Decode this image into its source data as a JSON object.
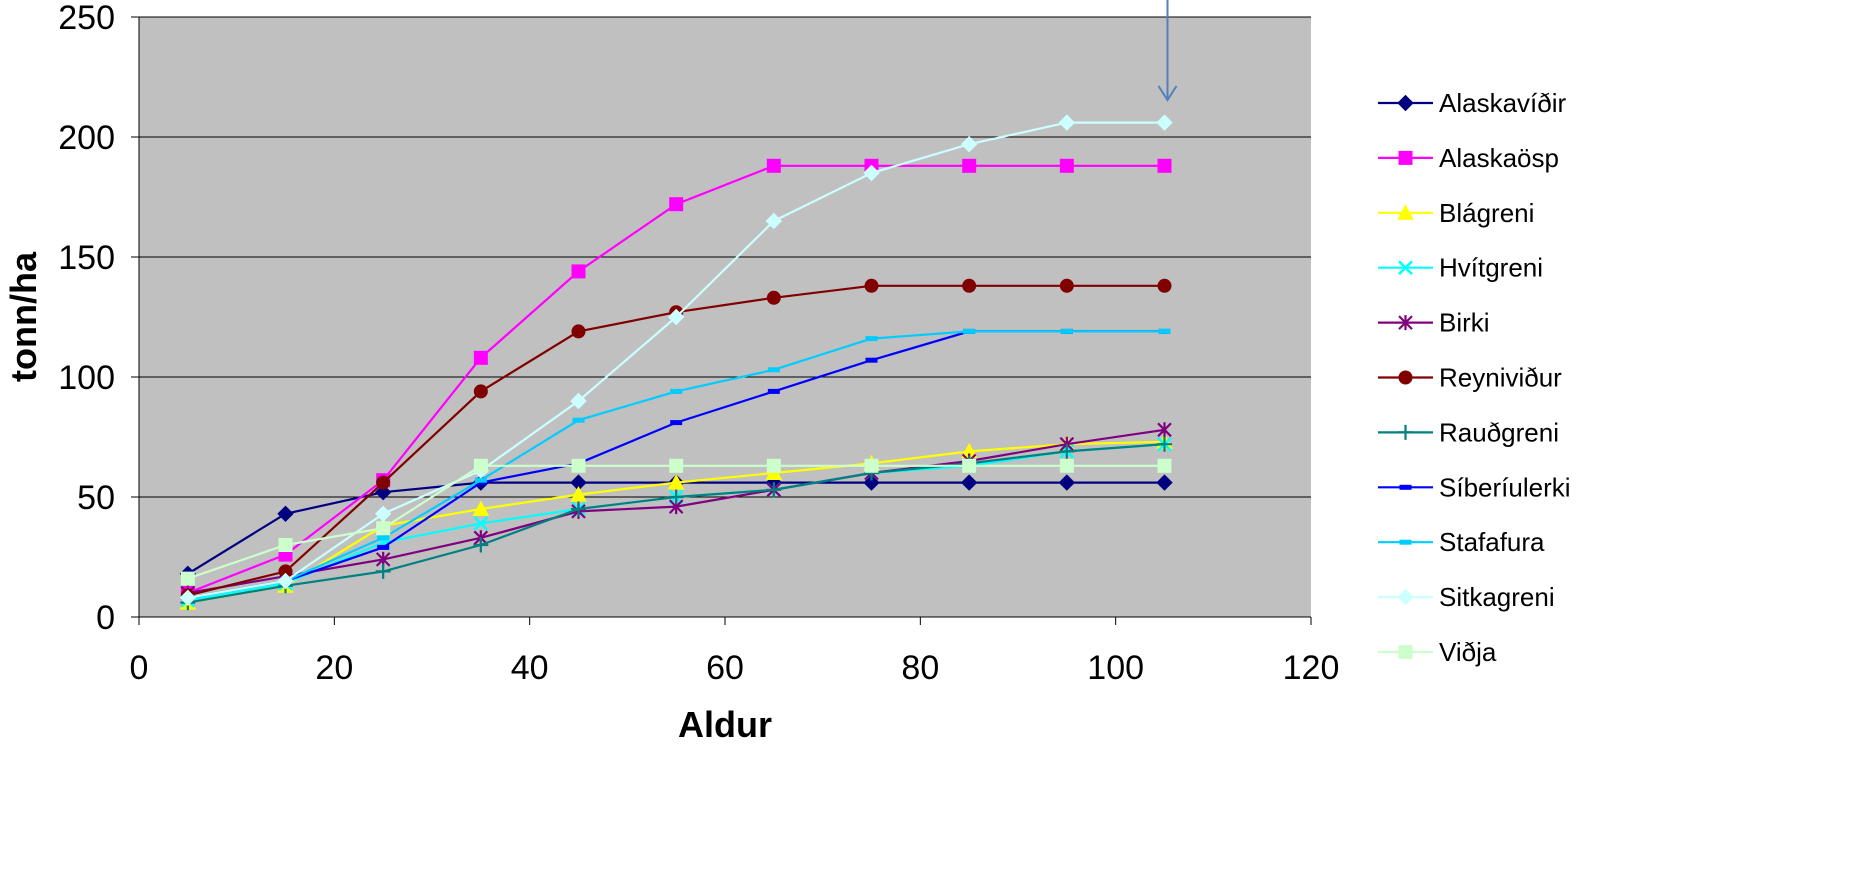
{
  "chart_data": {
    "type": "line",
    "xlabel": "Aldur",
    "ylabel": "tonn/ha",
    "xlim": [
      0,
      120
    ],
    "ylim": [
      0,
      250
    ],
    "x_ticks": [
      0,
      20,
      40,
      60,
      80,
      100,
      120
    ],
    "y_ticks": [
      0,
      50,
      100,
      150,
      200,
      250
    ],
    "grid": "horizontal",
    "legend_position": "right",
    "annotation": "arrow pointing down at x=105",
    "x": [
      5,
      15,
      25,
      35,
      45,
      55,
      65,
      75,
      85,
      95,
      105
    ],
    "series": [
      {
        "name": "Alaskavíðir",
        "color": "#000080",
        "marker": "diamond",
        "values": [
          18,
          43,
          52,
          56,
          56,
          56,
          56,
          56,
          56,
          56,
          56
        ]
      },
      {
        "name": "Alaskaösp",
        "color": "#FF00FF",
        "marker": "square",
        "values": [
          10,
          26,
          57,
          108,
          144,
          172,
          188,
          188,
          188,
          188,
          188
        ]
      },
      {
        "name": "Blágreni",
        "color": "#FFFF00",
        "marker": "triangle",
        "values": [
          6,
          13,
          38,
          45,
          51,
          56,
          60,
          64,
          69,
          72,
          73
        ]
      },
      {
        "name": "Hvítgreni",
        "color": "#00FFFF",
        "marker": "x",
        "values": [
          7,
          14,
          31,
          39,
          45,
          50,
          53,
          60,
          63,
          69,
          72
        ]
      },
      {
        "name": "Birki",
        "color": "#800080",
        "marker": "asterisk",
        "values": [
          10,
          17,
          24,
          33,
          44,
          46,
          53,
          60,
          65,
          72,
          78
        ]
      },
      {
        "name": "Reyniviður",
        "color": "#800000",
        "marker": "circle",
        "values": [
          9,
          19,
          56,
          94,
          119,
          127,
          133,
          138,
          138,
          138,
          138
        ]
      },
      {
        "name": "Rauðgreni",
        "color": "#008080",
        "marker": "plus",
        "values": [
          6,
          13,
          19,
          30,
          45,
          50,
          53,
          60,
          64,
          69,
          72
        ]
      },
      {
        "name": "Síberíulerki",
        "color": "#0000FF",
        "marker": "dash",
        "values": [
          8,
          15,
          29,
          56,
          64,
          81,
          94,
          107,
          119,
          119,
          119
        ]
      },
      {
        "name": "Stafafura",
        "color": "#00CCFF",
        "marker": "dash",
        "values": [
          8,
          15,
          33,
          57,
          82,
          94,
          103,
          116,
          119,
          119,
          119
        ]
      },
      {
        "name": "Sitkagreni",
        "color": "#CCFFFF",
        "marker": "diamond",
        "values": [
          8,
          15,
          43,
          61,
          90,
          125,
          165,
          185,
          197,
          206,
          206
        ]
      },
      {
        "name": "Viðja",
        "color": "#CCFFCC",
        "marker": "square",
        "values": [
          16,
          30,
          37,
          63,
          63,
          63,
          63,
          63,
          63,
          63,
          63
        ]
      }
    ]
  }
}
